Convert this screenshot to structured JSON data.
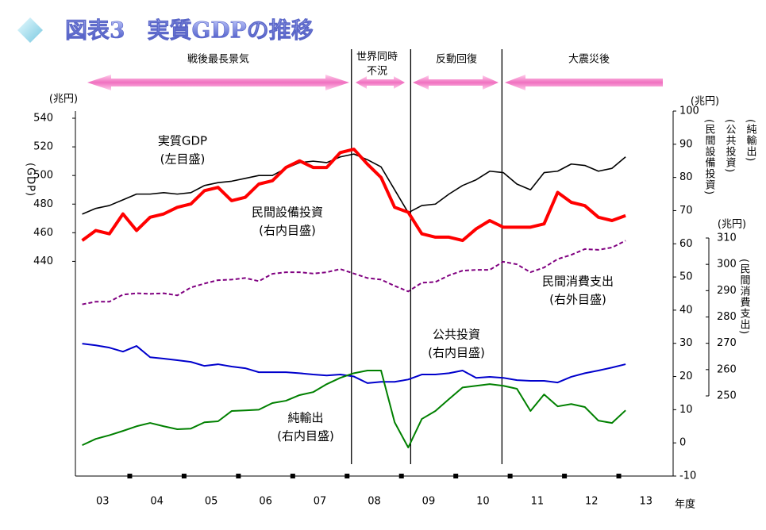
{
  "chart_data": {
    "type": "line",
    "title": "図表3　実質GDPの推移",
    "y_unit": "(兆円)",
    "y_label": "(GDP)",
    "y2_unit": "(兆円)",
    "y2_labels": [
      "(純輸出)",
      "(公共投資)",
      "(民間設備投資)"
    ],
    "y3_unit": "(兆円)",
    "y3_label": "(民間消費支出)",
    "x_unit": "年度",
    "periods": [
      [
        "戦後最長景気"
      ],
      [
        "世界同時",
        "不況"
      ],
      [
        "反動回復"
      ],
      [
        "大震災後"
      ]
    ],
    "dividers": [
      2008.08,
      2009.17,
      2010.85
    ],
    "xlim": [
      2003,
      2014
    ],
    "xticks": [
      {
        "value": 2003.5,
        "label": "03"
      },
      {
        "value": 2004.5,
        "label": "04"
      },
      {
        "value": 2005.5,
        "label": "05"
      },
      {
        "value": 2006.5,
        "label": "06"
      },
      {
        "value": 2007.5,
        "label": "07"
      },
      {
        "value": 2008.5,
        "label": "08"
      },
      {
        "value": 2009.5,
        "label": "09"
      },
      {
        "value": 2010.5,
        "label": "10"
      },
      {
        "value": 2011.5,
        "label": "11"
      },
      {
        "value": 2012.5,
        "label": "12"
      },
      {
        "value": 2013.5,
        "label": "13"
      }
    ],
    "xminor": [
      2004,
      2005,
      2006,
      2007,
      2008,
      2009,
      2010,
      2011,
      2012,
      2013
    ],
    "ylim": [
      290,
      545
    ],
    "yticks": [
      440,
      460,
      480,
      500,
      520,
      540
    ],
    "y2lim": [
      -10,
      100
    ],
    "y2ticks": [
      100,
      90,
      80,
      70,
      60,
      50,
      40,
      30,
      20,
      10,
      0,
      -10
    ],
    "y3lim": [
      250,
      310
    ],
    "y3ticks": [
      310,
      300,
      290,
      280,
      270,
      260,
      250
    ],
    "x": [
      2003.125,
      2003.375,
      2003.625,
      2003.875,
      2004.125,
      2004.375,
      2004.625,
      2004.875,
      2005.125,
      2005.375,
      2005.625,
      2005.875,
      2006.125,
      2006.375,
      2006.625,
      2006.875,
      2007.125,
      2007.375,
      2007.625,
      2007.875,
      2008.125,
      2008.375,
      2008.625,
      2008.875,
      2009.125,
      2009.375,
      2009.625,
      2009.875,
      2010.125,
      2010.375,
      2010.625,
      2010.875,
      2011.125,
      2011.375,
      2011.625,
      2011.875,
      2012.125,
      2012.375,
      2012.625,
      2012.875,
      2013.125
    ],
    "series": [
      {
        "name": "実質GDP",
        "note": "(左目盛)",
        "color": "#000000",
        "width": 1.6,
        "axis": "y",
        "values": [
          473,
          477,
          479,
          483,
          487,
          487,
          488,
          487,
          488,
          493,
          495,
          496,
          498,
          500,
          500,
          505,
          509,
          510,
          509,
          513,
          515,
          511,
          506,
          490,
          474,
          479,
          480,
          487,
          493,
          497,
          503,
          502,
          494,
          490,
          502,
          503,
          508,
          507,
          503,
          505,
          513
        ]
      },
      {
        "name": "民間設備投資",
        "note": "(右内目盛)",
        "color": "#ff0000",
        "width": 4,
        "axis": "y2",
        "values": [
          61,
          64,
          63,
          69,
          64,
          68,
          69,
          71,
          72,
          76,
          77,
          73,
          74,
          78,
          79,
          83,
          85,
          83,
          83,
          87.5,
          88.5,
          84,
          80,
          71,
          69.5,
          63,
          62,
          62,
          61,
          64.5,
          67,
          65,
          65,
          65,
          66,
          75.5,
          72.5,
          71.5,
          68,
          67,
          68.5
        ]
      },
      {
        "name": "民間消費支出",
        "note": "(右外目盛)",
        "color": "#800080",
        "width": 2,
        "dash": true,
        "axis": "y3",
        "values": [
          284.8,
          285.8,
          285.8,
          288.5,
          289,
          288.8,
          289,
          288.2,
          291.2,
          292.7,
          294,
          294.2,
          294.8,
          293.6,
          296.4,
          297,
          297,
          296.5,
          297,
          298.2,
          296.5,
          294.8,
          294.2,
          291.8,
          289.7,
          293,
          293.3,
          295.8,
          297.6,
          297.9,
          297.9,
          301,
          300,
          297,
          298.8,
          302,
          303.6,
          305.8,
          305.5,
          306.4,
          309
        ]
      },
      {
        "name": "公共投資",
        "note": "(右内目盛)",
        "color": "#0000cc",
        "width": 2,
        "axis": "y2",
        "values": [
          29.9,
          29.4,
          28.7,
          27.5,
          29.2,
          25.8,
          25.4,
          24.9,
          24.4,
          23.2,
          23.7,
          23,
          22.5,
          21.3,
          21.3,
          21.3,
          21,
          20.6,
          20.3,
          20.6,
          20,
          18,
          18.4,
          18.4,
          19.1,
          20.6,
          20.6,
          21,
          21.8,
          19.6,
          19.9,
          19.6,
          18.9,
          18.7,
          18.7,
          18.2,
          19.9,
          21,
          21.8,
          22.7,
          23.7
        ]
      },
      {
        "name": "純輸出",
        "note": "(右内目盛)",
        "color": "#008000",
        "width": 2,
        "axis": "y2",
        "values": [
          -0.7,
          1.2,
          2.3,
          3.6,
          5,
          6,
          5,
          4.1,
          4.3,
          6.2,
          6.5,
          9.6,
          9.8,
          10,
          12,
          12.7,
          14.4,
          15.3,
          17.7,
          19.6,
          21,
          21.8,
          21.8,
          6.2,
          -1.4,
          7.2,
          9.6,
          13.2,
          16.7,
          17.2,
          17.7,
          17.2,
          16.3,
          9.6,
          14.6,
          11,
          11.7,
          10.8,
          6.7,
          6,
          9.8
        ]
      }
    ]
  }
}
